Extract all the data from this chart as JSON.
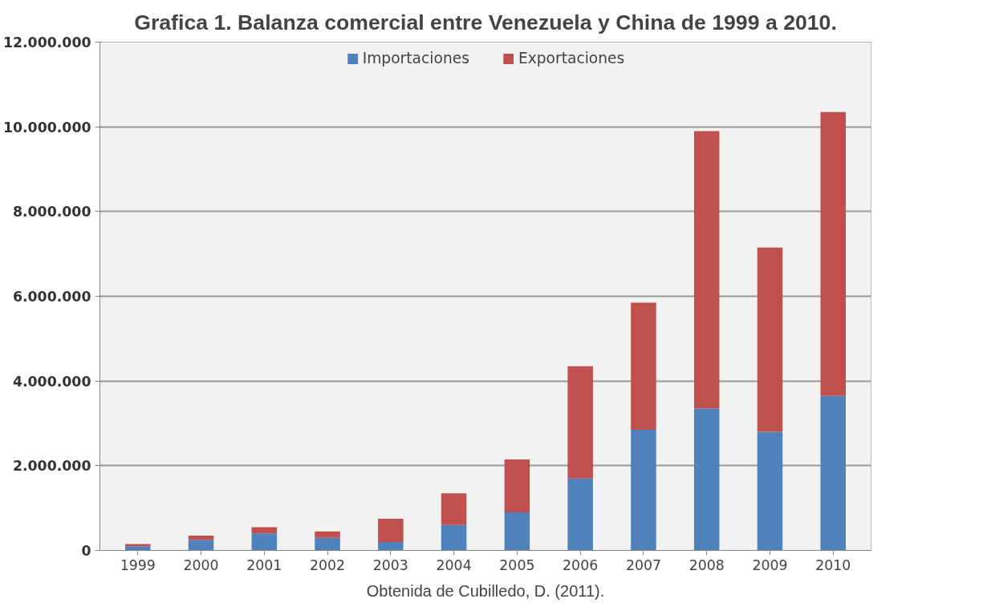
{
  "chart_data": {
    "type": "bar",
    "title": "Grafica 1. Balanza comercial entre Venezuela y China de 1999 a 2010.",
    "categories": [
      "1999",
      "2000",
      "2001",
      "2002",
      "2003",
      "2004",
      "2005",
      "2006",
      "2007",
      "2008",
      "2009",
      "2010"
    ],
    "stacked": true,
    "series": [
      {
        "name": "Importaciones",
        "color": "#4f81bd",
        "values": [
          100000,
          250000,
          400000,
          300000,
          200000,
          600000,
          900000,
          1700000,
          2850000,
          3350000,
          2800000,
          3650000
        ]
      },
      {
        "name": "Exportaciones",
        "color": "#c0504d",
        "values": [
          50000,
          100000,
          150000,
          150000,
          550000,
          750000,
          1250000,
          2650000,
          3000000,
          6550000,
          4350000,
          6700000
        ]
      }
    ],
    "ylim": [
      0,
      12000000
    ],
    "yticks": [
      {
        "value": 0,
        "label": "0"
      },
      {
        "value": 2000000,
        "label": "2.000.000"
      },
      {
        "value": 4000000,
        "label": "4.000.000"
      },
      {
        "value": 6000000,
        "label": "6.000.000"
      },
      {
        "value": 8000000,
        "label": "8.000.000"
      },
      {
        "value": 10000000,
        "label": "10.000.000"
      },
      {
        "value": 12000000,
        "label": "12.000.000"
      }
    ],
    "grid": "y",
    "legend": "top",
    "annotations": [
      "Obtenida de Cubilledo, D. (2011)."
    ]
  }
}
